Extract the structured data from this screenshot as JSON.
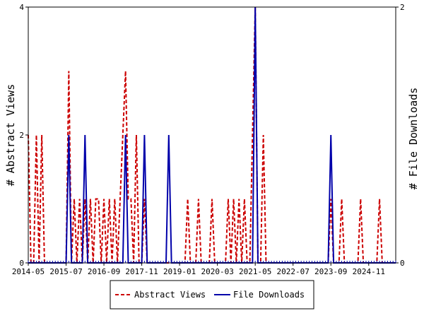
{
  "chart_data": {
    "type": "line",
    "ylabel_left": "# Abstract Views",
    "ylabel_right": "# File Downloads",
    "ylim_left": [
      0,
      4
    ],
    "ylim_right": [
      0,
      2
    ],
    "yticks_left": [
      "0",
      "2",
      "4"
    ],
    "yticks_right": [
      "0",
      "2"
    ],
    "x_range": [
      "2014-05",
      "2025-09"
    ],
    "xtick_labels": [
      "2014-05",
      "2015-07",
      "2016-09",
      "2017-11",
      "2019-01",
      "2020-03",
      "2021-05",
      "2022-07",
      "2023-09",
      "2024-11"
    ],
    "grid": false,
    "legend_position": "bottom",
    "series": [
      {
        "name": "Abstract Views",
        "axis": "left",
        "color": "#cc0000",
        "style": "dashed",
        "points": [
          {
            "x": "2014-05",
            "y": 2
          },
          {
            "x": "2014-06",
            "y": 0
          },
          {
            "x": "2014-07",
            "y": 0
          },
          {
            "x": "2014-08",
            "y": 2
          },
          {
            "x": "2014-09",
            "y": 0
          },
          {
            "x": "2014-10",
            "y": 2
          },
          {
            "x": "2014-11",
            "y": 0
          },
          {
            "x": "2015-07",
            "y": 0
          },
          {
            "x": "2015-08",
            "y": 3
          },
          {
            "x": "2015-09",
            "y": 0
          },
          {
            "x": "2015-10",
            "y": 1
          },
          {
            "x": "2015-11",
            "y": 0
          },
          {
            "x": "2015-12",
            "y": 1
          },
          {
            "x": "2016-01",
            "y": 0
          },
          {
            "x": "2016-02",
            "y": 1
          },
          {
            "x": "2016-03",
            "y": 0
          },
          {
            "x": "2016-04",
            "y": 1
          },
          {
            "x": "2016-05",
            "y": 0
          },
          {
            "x": "2016-06",
            "y": 1
          },
          {
            "x": "2016-07",
            "y": 1
          },
          {
            "x": "2016-08",
            "y": 0
          },
          {
            "x": "2016-09",
            "y": 1
          },
          {
            "x": "2016-10",
            "y": 0
          },
          {
            "x": "2016-11",
            "y": 1
          },
          {
            "x": "2016-12",
            "y": 0
          },
          {
            "x": "2017-01",
            "y": 1
          },
          {
            "x": "2017-02",
            "y": 0
          },
          {
            "x": "2017-03",
            "y": 1
          },
          {
            "x": "2017-04",
            "y": 2
          },
          {
            "x": "2017-05",
            "y": 3
          },
          {
            "x": "2017-06",
            "y": 1
          },
          {
            "x": "2017-07",
            "y": 1
          },
          {
            "x": "2017-08",
            "y": 0
          },
          {
            "x": "2017-09",
            "y": 2
          },
          {
            "x": "2017-10",
            "y": 0
          },
          {
            "x": "2017-11",
            "y": 0
          },
          {
            "x": "2017-12",
            "y": 1
          },
          {
            "x": "2018-01",
            "y": 0
          },
          {
            "x": "2019-03",
            "y": 0
          },
          {
            "x": "2019-04",
            "y": 1
          },
          {
            "x": "2019-05",
            "y": 0
          },
          {
            "x": "2019-07",
            "y": 0
          },
          {
            "x": "2019-08",
            "y": 1
          },
          {
            "x": "2019-09",
            "y": 0
          },
          {
            "x": "2019-12",
            "y": 0
          },
          {
            "x": "2020-01",
            "y": 1
          },
          {
            "x": "2020-02",
            "y": 0
          },
          {
            "x": "2020-06",
            "y": 0
          },
          {
            "x": "2020-07",
            "y": 1
          },
          {
            "x": "2020-08",
            "y": 0
          },
          {
            "x": "2020-09",
            "y": 1
          },
          {
            "x": "2020-10",
            "y": 0
          },
          {
            "x": "2020-11",
            "y": 1
          },
          {
            "x": "2020-12",
            "y": 0
          },
          {
            "x": "2021-01",
            "y": 1
          },
          {
            "x": "2021-02",
            "y": 0
          },
          {
            "x": "2021-03",
            "y": 0
          },
          {
            "x": "2021-04",
            "y": 2
          },
          {
            "x": "2021-05",
            "y": 4
          },
          {
            "x": "2021-06",
            "y": 0
          },
          {
            "x": "2021-07",
            "y": 0
          },
          {
            "x": "2021-08",
            "y": 2
          },
          {
            "x": "2021-09",
            "y": 0
          },
          {
            "x": "2023-08",
            "y": 0
          },
          {
            "x": "2023-09",
            "y": 1
          },
          {
            "x": "2023-10",
            "y": 0
          },
          {
            "x": "2023-12",
            "y": 0
          },
          {
            "x": "2024-01",
            "y": 1
          },
          {
            "x": "2024-02",
            "y": 0
          },
          {
            "x": "2024-07",
            "y": 0
          },
          {
            "x": "2024-08",
            "y": 1
          },
          {
            "x": "2024-09",
            "y": 0
          },
          {
            "x": "2025-02",
            "y": 0
          },
          {
            "x": "2025-03",
            "y": 1
          },
          {
            "x": "2025-04",
            "y": 0
          }
        ]
      },
      {
        "name": "File Downloads",
        "axis": "right",
        "color": "#0000aa",
        "style": "solid",
        "points": [
          {
            "x": "2014-05",
            "y": 0
          },
          {
            "x": "2015-07",
            "y": 0
          },
          {
            "x": "2015-08",
            "y": 1
          },
          {
            "x": "2015-09",
            "y": 0
          },
          {
            "x": "2016-01",
            "y": 0
          },
          {
            "x": "2016-02",
            "y": 1
          },
          {
            "x": "2016-03",
            "y": 0
          },
          {
            "x": "2017-04",
            "y": 0
          },
          {
            "x": "2017-05",
            "y": 1
          },
          {
            "x": "2017-06",
            "y": 0
          },
          {
            "x": "2017-11",
            "y": 0
          },
          {
            "x": "2017-12",
            "y": 1
          },
          {
            "x": "2018-01",
            "y": 0
          },
          {
            "x": "2018-08",
            "y": 0
          },
          {
            "x": "2018-09",
            "y": 1
          },
          {
            "x": "2018-10",
            "y": 0
          },
          {
            "x": "2021-03",
            "y": 0
          },
          {
            "x": "2021-04",
            "y": 0
          },
          {
            "x": "2021-05",
            "y": 2
          },
          {
            "x": "2021-06",
            "y": 0
          },
          {
            "x": "2023-08",
            "y": 0
          },
          {
            "x": "2023-09",
            "y": 1
          },
          {
            "x": "2023-10",
            "y": 0
          },
          {
            "x": "2025-09",
            "y": 0
          }
        ]
      }
    ]
  }
}
